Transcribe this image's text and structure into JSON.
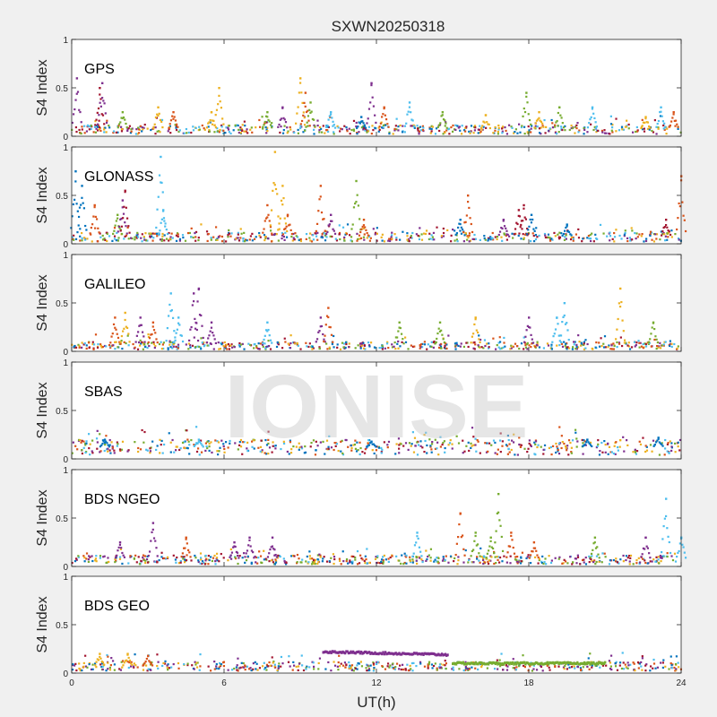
{
  "figure": {
    "title": "SXWN20250318",
    "xlabel": "UT(h)",
    "watermark": "IONISE"
  },
  "colors": [
    "#0072bd",
    "#d95319",
    "#edb120",
    "#7e2f8e",
    "#77ac30",
    "#4dbeee",
    "#a2142f"
  ],
  "chart_data": [
    {
      "type": "scatter",
      "panel": "GPS",
      "ylabel": "S4 Index",
      "xlim": [
        0,
        24
      ],
      "ylim": [
        0,
        1
      ],
      "xticks": [
        0,
        6,
        12,
        18,
        24
      ],
      "yticks": [
        0,
        0.5,
        1
      ],
      "ytick_labels": [
        "0",
        "0.5",
        "1"
      ],
      "baseline": 0.07,
      "spikes": [
        [
          0.2,
          0.6,
          3
        ],
        [
          1.1,
          0.5,
          6
        ],
        [
          1.2,
          0.55,
          3
        ],
        [
          2.0,
          0.25,
          4
        ],
        [
          3.4,
          0.3,
          2
        ],
        [
          4.0,
          0.25,
          1
        ],
        [
          5.5,
          0.25,
          2
        ],
        [
          5.8,
          0.5,
          2
        ],
        [
          7.7,
          0.25,
          4
        ],
        [
          8.3,
          0.3,
          3
        ],
        [
          9.0,
          0.6,
          2
        ],
        [
          9.2,
          0.45,
          1
        ],
        [
          9.4,
          0.35,
          4
        ],
        [
          10.2,
          0.25,
          5
        ],
        [
          11.4,
          0.2,
          0
        ],
        [
          11.8,
          0.55,
          3
        ],
        [
          12.3,
          0.3,
          1
        ],
        [
          13.3,
          0.35,
          5
        ],
        [
          14.6,
          0.25,
          4
        ],
        [
          16.3,
          0.22,
          2
        ],
        [
          17.9,
          0.45,
          4
        ],
        [
          18.4,
          0.25,
          2
        ],
        [
          19.2,
          0.3,
          4
        ],
        [
          20.5,
          0.3,
          5
        ],
        [
          22.6,
          0.2,
          2
        ],
        [
          23.2,
          0.3,
          5
        ],
        [
          23.7,
          0.25,
          1
        ]
      ]
    },
    {
      "type": "scatter",
      "panel": "GLONASS",
      "ylabel": "S4 Index",
      "xlim": [
        0,
        24
      ],
      "ylim": [
        0,
        1
      ],
      "xticks": [
        0,
        6,
        12,
        18,
        24
      ],
      "yticks": [
        0,
        0.5,
        1
      ],
      "ytick_labels": [
        "0",
        "0.5",
        "1"
      ],
      "baseline": 0.07,
      "spikes": [
        [
          0.15,
          0.75,
          0
        ],
        [
          0.4,
          0.6,
          0
        ],
        [
          0.9,
          0.4,
          1
        ],
        [
          1.8,
          0.3,
          4
        ],
        [
          2.0,
          0.45,
          3
        ],
        [
          2.1,
          0.55,
          6
        ],
        [
          3.5,
          0.9,
          5
        ],
        [
          3.6,
          0.35,
          5
        ],
        [
          7.7,
          0.4,
          1
        ],
        [
          8.0,
          0.95,
          2
        ],
        [
          8.3,
          0.6,
          2
        ],
        [
          8.5,
          0.3,
          1
        ],
        [
          9.8,
          0.6,
          1
        ],
        [
          10.2,
          0.3,
          3
        ],
        [
          11.2,
          0.65,
          4
        ],
        [
          11.5,
          0.25,
          1
        ],
        [
          15.3,
          0.25,
          0
        ],
        [
          15.6,
          0.5,
          1
        ],
        [
          17.0,
          0.25,
          3
        ],
        [
          17.6,
          0.35,
          6
        ],
        [
          17.8,
          0.4,
          6
        ],
        [
          18.1,
          0.3,
          0
        ],
        [
          19.5,
          0.2,
          0
        ],
        [
          23.4,
          0.25,
          6
        ],
        [
          24.0,
          0.7,
          1
        ]
      ]
    },
    {
      "type": "scatter",
      "panel": "GALILEO",
      "ylabel": "S4 Index",
      "xlim": [
        0,
        24
      ],
      "ylim": [
        0,
        1
      ],
      "xticks": [
        0,
        6,
        12,
        18,
        24
      ],
      "yticks": [
        0,
        0.5,
        1
      ],
      "ytick_labels": [
        "0",
        "0.5",
        "1"
      ],
      "baseline": 0.06,
      "spikes": [
        [
          1.7,
          0.35,
          1
        ],
        [
          2.1,
          0.4,
          2
        ],
        [
          2.7,
          0.35,
          3
        ],
        [
          3.2,
          0.3,
          1
        ],
        [
          3.9,
          0.6,
          5
        ],
        [
          4.2,
          0.35,
          5
        ],
        [
          4.8,
          0.6,
          3
        ],
        [
          5.0,
          0.65,
          3
        ],
        [
          5.5,
          0.3,
          3
        ],
        [
          7.7,
          0.3,
          5
        ],
        [
          9.8,
          0.35,
          3
        ],
        [
          10.1,
          0.45,
          1
        ],
        [
          12.9,
          0.3,
          4
        ],
        [
          14.5,
          0.3,
          4
        ],
        [
          15.9,
          0.35,
          2
        ],
        [
          18.0,
          0.35,
          3
        ],
        [
          19.1,
          0.35,
          5
        ],
        [
          19.4,
          0.5,
          5
        ],
        [
          21.6,
          0.65,
          2
        ],
        [
          22.9,
          0.3,
          4
        ]
      ]
    },
    {
      "type": "scatter",
      "panel": "SBAS",
      "ylabel": "S4 Index",
      "xlim": [
        0,
        24
      ],
      "ylim": [
        0,
        1
      ],
      "xticks": [
        0,
        6,
        12,
        18,
        24
      ],
      "yticks": [
        0,
        0.5,
        1
      ],
      "ytick_labels": [
        "0",
        "0.5",
        "1"
      ],
      "baseline": 0.12,
      "spikes": [
        [
          1.3,
          0.2,
          0
        ],
        [
          5.0,
          0.2,
          5
        ],
        [
          11.8,
          0.18,
          0
        ],
        [
          20.3,
          0.2,
          0
        ],
        [
          23.1,
          0.22,
          0
        ]
      ]
    },
    {
      "type": "scatter",
      "panel": "BDS NGEO",
      "ylabel": "S4 Index",
      "xlim": [
        0,
        24
      ],
      "ylim": [
        0,
        1
      ],
      "xticks": [
        0,
        6,
        12,
        18,
        24
      ],
      "yticks": [
        0,
        0.5,
        1
      ],
      "ytick_labels": [
        "0",
        "0.5",
        "1"
      ],
      "baseline": 0.07,
      "spikes": [
        [
          1.9,
          0.25,
          3
        ],
        [
          3.2,
          0.45,
          3
        ],
        [
          4.5,
          0.3,
          1
        ],
        [
          6.4,
          0.25,
          3
        ],
        [
          7.0,
          0.3,
          3
        ],
        [
          7.9,
          0.3,
          3
        ],
        [
          13.6,
          0.35,
          5
        ],
        [
          15.3,
          0.55,
          1
        ],
        [
          15.9,
          0.35,
          4
        ],
        [
          16.5,
          0.3,
          4
        ],
        [
          16.8,
          0.75,
          4
        ],
        [
          17.3,
          0.35,
          1
        ],
        [
          18.2,
          0.25,
          1
        ],
        [
          20.6,
          0.3,
          4
        ],
        [
          22.6,
          0.3,
          3
        ],
        [
          23.4,
          0.7,
          5
        ],
        [
          24.0,
          0.3,
          5
        ]
      ]
    },
    {
      "type": "scatter",
      "panel": "BDS GEO",
      "ylabel": "S4 Index",
      "xlim": [
        0,
        24
      ],
      "ylim": [
        0,
        1
      ],
      "xticks": [
        0,
        6,
        12,
        18,
        24
      ],
      "xtick_labels": [
        "0",
        "6",
        "12",
        "18",
        "24"
      ],
      "yticks": [
        0,
        0.5,
        1
      ],
      "ytick_labels": [
        "0",
        "0.5",
        "1"
      ],
      "baseline": 0.07,
      "spikes": [
        [
          1.1,
          0.2,
          2
        ],
        [
          2.2,
          0.2,
          2
        ],
        [
          3.0,
          0.18,
          1
        ]
      ],
      "segments": [
        {
          "x0": 9.9,
          "x1": 14.8,
          "y0": 0.22,
          "y1": 0.19,
          "color_idx": 3
        },
        {
          "x0": 15.0,
          "x1": 21.0,
          "y0": 0.1,
          "y1": 0.1,
          "color_idx": 4
        }
      ]
    }
  ]
}
